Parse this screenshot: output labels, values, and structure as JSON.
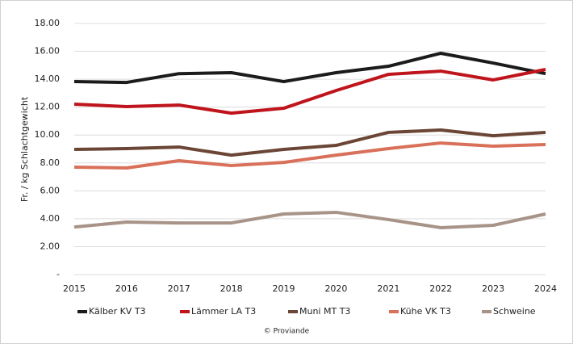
{
  "chart_data": {
    "type": "line",
    "y_label": "Fr. / kg Schlachtgewicht",
    "source": "© Proviande",
    "x": [
      2015,
      2016,
      2017,
      2018,
      2019,
      2020,
      2021,
      2022,
      2023,
      2024
    ],
    "xlim": [
      2015,
      2024
    ],
    "xticks": [
      2015,
      2016,
      2017,
      2018,
      2019,
      2020,
      2021,
      2022,
      2023,
      2024
    ],
    "ylim": [
      0,
      18
    ],
    "yticks": [
      {
        "value": 0,
        "label": "-"
      },
      {
        "value": 2,
        "label": "2.00"
      },
      {
        "value": 4,
        "label": "4.00"
      },
      {
        "value": 6,
        "label": "6.00"
      },
      {
        "value": 8,
        "label": "8.00"
      },
      {
        "value": 10,
        "label": "10.00"
      },
      {
        "value": 12,
        "label": "12.00"
      },
      {
        "value": 14,
        "label": "14.00"
      },
      {
        "value": 16,
        "label": "16.00"
      },
      {
        "value": 18,
        "label": "18.00"
      }
    ],
    "grid": true,
    "legend": "bottom",
    "series": [
      {
        "name": "Kälber KV T3",
        "color": "#1c1a1b",
        "values": [
          13.83,
          13.77,
          14.4,
          14.47,
          13.83,
          14.47,
          14.93,
          15.86,
          15.16,
          14.4
        ]
      },
      {
        "name": "Lämmer LA T3",
        "color": "#c0141c",
        "values": [
          12.21,
          12.04,
          12.15,
          11.57,
          11.92,
          13.19,
          14.35,
          14.58,
          13.95,
          14.7
        ]
      },
      {
        "name": "Muni MT T3",
        "color": "#6b4636",
        "values": [
          8.97,
          9.03,
          9.14,
          8.56,
          8.97,
          9.26,
          10.19,
          10.36,
          9.95,
          10.19
        ]
      },
      {
        "name": "Kühe VK T3",
        "color": "#d9705a",
        "values": [
          7.7,
          7.64,
          8.16,
          7.81,
          8.04,
          8.56,
          9.03,
          9.43,
          9.2,
          9.32
        ]
      },
      {
        "name": "Schweine",
        "color": "#a89388",
        "values": [
          3.41,
          3.76,
          3.7,
          3.7,
          4.34,
          4.46,
          3.94,
          3.36,
          3.53,
          4.34
        ]
      }
    ]
  }
}
